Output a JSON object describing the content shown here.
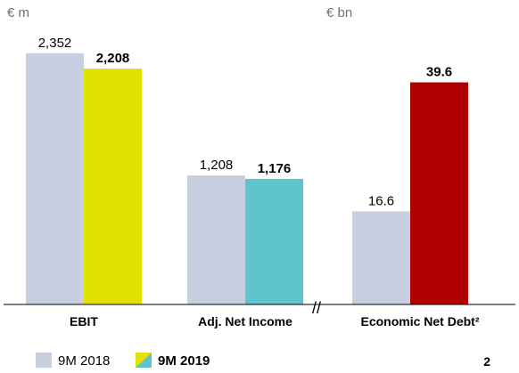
{
  "units": {
    "left": "€ m",
    "right": "€ bn"
  },
  "colors": {
    "prior_year": "#c7cfe0",
    "ebit_2019": "#e2e200",
    "net_income_2019": "#5ec4cd",
    "net_debt_2019": "#b10000",
    "legend_triangle_a": "#e2e200",
    "legend_triangle_b": "#5ec4cd"
  },
  "legend": {
    "prior": "9M 2018",
    "current": "9M 2019"
  },
  "page_number": "2",
  "chart_data": {
    "type": "bar",
    "categories": [
      "EBIT",
      "Adj. Net Income",
      "Economic Net Debt²"
    ],
    "series": [
      {
        "name": "9M 2018",
        "values": [
          2352,
          1208,
          16.6
        ],
        "labels": [
          "2,352",
          "1,208",
          "16.6"
        ]
      },
      {
        "name": "9M 2019",
        "values": [
          2208,
          1176,
          39.6
        ],
        "labels": [
          "2,208",
          "1,176",
          "39.6"
        ]
      }
    ],
    "axis_break": "//",
    "units": [
      "€ m",
      "€ m",
      "€ bn"
    ],
    "title": "",
    "xlabel": "",
    "ylabel": ""
  }
}
